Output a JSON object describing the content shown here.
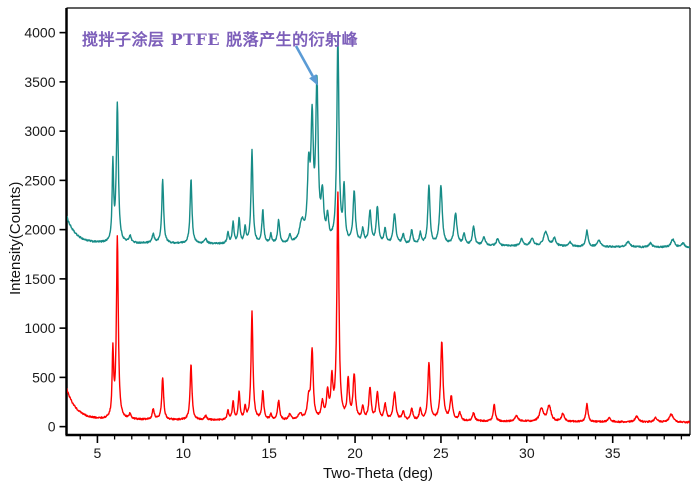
{
  "page": {
    "background": "#ffffff"
  },
  "chart_data": {
    "type": "line",
    "title": "",
    "xlabel": "Two-Theta (deg)",
    "ylabel": "Intensity(Counts)",
    "xlim": [
      3.2,
      39.5
    ],
    "ylim": [
      -85,
      4250
    ],
    "x_major_ticks": [
      5,
      10,
      15,
      20,
      25,
      30,
      35
    ],
    "x_minor_tick_step": 1,
    "y_major_ticks": [
      0,
      500,
      1000,
      1500,
      2000,
      2500,
      3000,
      3500,
      4000
    ],
    "grid": false,
    "legend": "none",
    "frame_color": "#000000",
    "tick_label_color": "#1a1a1a",
    "annotation": {
      "text": "搅拌子涂层 PTFE 脱落产生的衍射峰",
      "color": "#7d5fba",
      "arrow_color": "#5b9bd5",
      "points_to": {
        "two_theta": 17.85,
        "counts": 3460
      }
    },
    "series": [
      {
        "name": "upper-teal-pattern",
        "color": "#178c87",
        "line_width": 1.4,
        "noise": 8,
        "baseline_start": 1865,
        "baseline_end": 1818,
        "edge_decay": {
          "amplitude": 275,
          "tau": 0.5
        },
        "peaks": [
          [
            5.9,
            780,
            0.1
          ],
          [
            6.16,
            1400,
            0.14
          ],
          [
            6.9,
            70,
            0.15
          ],
          [
            8.25,
            90,
            0.15
          ],
          [
            8.8,
            640,
            0.13
          ],
          [
            10.45,
            660,
            0.13
          ],
          [
            11.3,
            50,
            0.15
          ],
          [
            12.6,
            110,
            0.12
          ],
          [
            12.9,
            215,
            0.12
          ],
          [
            13.25,
            255,
            0.12
          ],
          [
            13.6,
            155,
            0.12
          ],
          [
            14.0,
            950,
            0.13
          ],
          [
            14.63,
            335,
            0.13
          ],
          [
            15.1,
            90,
            0.12
          ],
          [
            15.55,
            235,
            0.14
          ],
          [
            16.2,
            80,
            0.15
          ],
          [
            16.9,
            200,
            0.3
          ],
          [
            17.3,
            700,
            0.18
          ],
          [
            17.5,
            1150,
            0.16
          ],
          [
            17.78,
            1560,
            0.17
          ],
          [
            18.1,
            450,
            0.18
          ],
          [
            18.4,
            230,
            0.15
          ],
          [
            19.0,
            2060,
            0.15
          ],
          [
            19.36,
            540,
            0.13
          ],
          [
            19.95,
            520,
            0.16
          ],
          [
            20.45,
            140,
            0.15
          ],
          [
            20.87,
            330,
            0.16
          ],
          [
            21.3,
            370,
            0.16
          ],
          [
            21.75,
            150,
            0.15
          ],
          [
            22.3,
            310,
            0.18
          ],
          [
            22.8,
            100,
            0.15
          ],
          [
            23.3,
            150,
            0.15
          ],
          [
            23.8,
            115,
            0.15
          ],
          [
            24.3,
            590,
            0.15
          ],
          [
            25.0,
            600,
            0.18
          ],
          [
            25.85,
            315,
            0.2
          ],
          [
            26.35,
            115,
            0.15
          ],
          [
            26.9,
            190,
            0.16
          ],
          [
            27.5,
            80,
            0.2
          ],
          [
            28.3,
            70,
            0.18
          ],
          [
            29.7,
            70,
            0.2
          ],
          [
            30.3,
            80,
            0.2
          ],
          [
            31.1,
            145,
            0.3
          ],
          [
            31.6,
            80,
            0.2
          ],
          [
            32.5,
            45,
            0.2
          ],
          [
            33.5,
            165,
            0.15
          ],
          [
            34.2,
            65,
            0.2
          ],
          [
            35.9,
            55,
            0.25
          ],
          [
            37.2,
            40,
            0.2
          ],
          [
            38.5,
            80,
            0.25
          ],
          [
            39.1,
            40,
            0.2
          ]
        ]
      },
      {
        "name": "lower-red-pattern",
        "color": "#fe0000",
        "line_width": 1.4,
        "noise": 8,
        "baseline_start": 72,
        "baseline_end": 43,
        "edge_decay": {
          "amplitude": 320,
          "tau": 0.55
        },
        "peaks": [
          [
            5.9,
            660,
            0.1
          ],
          [
            6.16,
            1845,
            0.13
          ],
          [
            6.9,
            50,
            0.15
          ],
          [
            8.25,
            110,
            0.14
          ],
          [
            8.8,
            430,
            0.13
          ],
          [
            10.45,
            560,
            0.13
          ],
          [
            11.3,
            40,
            0.15
          ],
          [
            12.6,
            90,
            0.12
          ],
          [
            12.9,
            180,
            0.12
          ],
          [
            13.25,
            280,
            0.12
          ],
          [
            13.6,
            120,
            0.12
          ],
          [
            14.0,
            1100,
            0.13
          ],
          [
            14.63,
            285,
            0.13
          ],
          [
            15.1,
            55,
            0.12
          ],
          [
            15.55,
            195,
            0.14
          ],
          [
            16.2,
            55,
            0.15
          ],
          [
            16.8,
            60,
            0.25
          ],
          [
            17.3,
            200,
            0.18
          ],
          [
            17.5,
            690,
            0.15
          ],
          [
            18.1,
            170,
            0.16
          ],
          [
            18.4,
            260,
            0.15
          ],
          [
            18.65,
            390,
            0.14
          ],
          [
            19.0,
            2280,
            0.14
          ],
          [
            19.6,
            390,
            0.14
          ],
          [
            19.95,
            450,
            0.16
          ],
          [
            20.45,
            120,
            0.15
          ],
          [
            20.87,
            320,
            0.16
          ],
          [
            21.3,
            270,
            0.16
          ],
          [
            21.75,
            160,
            0.15
          ],
          [
            22.3,
            280,
            0.18
          ],
          [
            22.8,
            90,
            0.15
          ],
          [
            23.3,
            120,
            0.15
          ],
          [
            23.8,
            110,
            0.15
          ],
          [
            24.3,
            580,
            0.15
          ],
          [
            25.05,
            800,
            0.16
          ],
          [
            25.6,
            240,
            0.18
          ],
          [
            26.1,
            80,
            0.15
          ],
          [
            26.9,
            80,
            0.16
          ],
          [
            28.1,
            170,
            0.14
          ],
          [
            29.4,
            60,
            0.2
          ],
          [
            30.85,
            130,
            0.25
          ],
          [
            31.3,
            160,
            0.25
          ],
          [
            32.1,
            80,
            0.2
          ],
          [
            33.5,
            180,
            0.14
          ],
          [
            34.8,
            45,
            0.2
          ],
          [
            36.4,
            55,
            0.25
          ],
          [
            37.5,
            45,
            0.2
          ],
          [
            38.4,
            85,
            0.25
          ]
        ]
      }
    ]
  }
}
